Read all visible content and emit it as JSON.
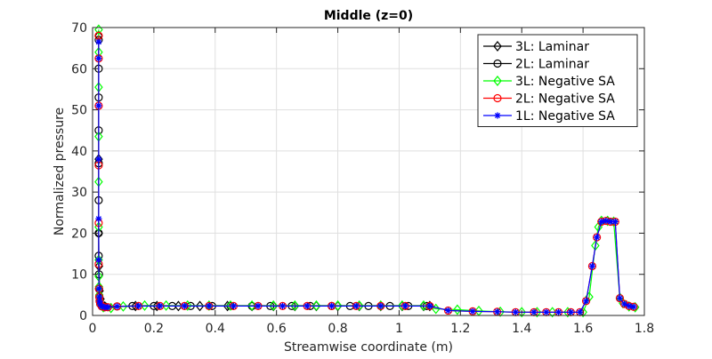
{
  "chart_data": {
    "type": "line",
    "title": "Middle (z=0)",
    "xlabel": "Streamwise coordinate (m)",
    "ylabel": "Normalized pressure",
    "xlim": [
      0,
      1.8
    ],
    "ylim": [
      0,
      70
    ],
    "xticks": [
      "0",
      "0.2",
      "0.4",
      "0.6",
      "0.8",
      "1",
      "1.2",
      "1.4",
      "1.6",
      "1.8"
    ],
    "yticks": [
      "0",
      "10",
      "20",
      "30",
      "40",
      "50",
      "60",
      "70"
    ],
    "grid": true,
    "legend_position": "top-right",
    "series": [
      {
        "name": "3L: Laminar",
        "color": "#000000",
        "marker": "diamond",
        "x": [
          0.02,
          0.02,
          0.02,
          0.021,
          0.023,
          0.026,
          0.03,
          0.04,
          0.14,
          0.21,
          0.28,
          0.35,
          0.44,
          0.52,
          0.59,
          0.66,
          0.73,
          0.8,
          0.87,
          0.94,
          1.01,
          1.08,
          1.1
        ],
        "y": [
          68,
          38,
          20,
          12,
          6,
          4,
          2.5,
          2.2,
          2.3,
          2.3,
          2.3,
          2.3,
          2.3,
          2.3,
          2.3,
          2.3,
          2.3,
          2.3,
          2.3,
          2.3,
          2.3,
          2.3,
          2.3
        ]
      },
      {
        "name": "2L: Laminar",
        "color": "#000000",
        "marker": "circle",
        "x": [
          0.02,
          0.02,
          0.02,
          0.02,
          0.02,
          0.02,
          0.02,
          0.02,
          0.021,
          0.021,
          0.022,
          0.023,
          0.025,
          0.03,
          0.04,
          0.08,
          0.13,
          0.2,
          0.26,
          0.32,
          0.39,
          0.45,
          0.52,
          0.58,
          0.65,
          0.71,
          0.78,
          0.84,
          0.9,
          0.97,
          1.03,
          1.09
        ],
        "y": [
          67,
          60,
          53,
          45,
          37,
          28,
          20,
          14.5,
          10,
          6.5,
          4.5,
          3.5,
          2.8,
          2.3,
          2.2,
          2.2,
          2.3,
          2.3,
          2.3,
          2.3,
          2.3,
          2.3,
          2.3,
          2.3,
          2.3,
          2.3,
          2.3,
          2.3,
          2.3,
          2.3,
          2.3,
          2.3
        ]
      },
      {
        "name": "3L: Negative SA",
        "color": "#00ff00",
        "marker": "diamond",
        "x": [
          0.02,
          0.02,
          0.02,
          0.02,
          0.02,
          0.02,
          0.02,
          0.02,
          0.021,
          0.022,
          0.024,
          0.028,
          0.035,
          0.06,
          0.1,
          0.17,
          0.24,
          0.31,
          0.38,
          0.45,
          0.52,
          0.59,
          0.66,
          0.73,
          0.8,
          0.87,
          0.94,
          1.01,
          1.08,
          1.12,
          1.19,
          1.26,
          1.33,
          1.4,
          1.45,
          1.5,
          1.55,
          1.6,
          1.62,
          1.64,
          1.65,
          1.66,
          1.68,
          1.7,
          1.72,
          1.73,
          1.75,
          1.77
        ],
        "y": [
          69.5,
          64,
          55.5,
          43.5,
          32.5,
          21.5,
          13.5,
          9.5,
          7,
          5,
          3.5,
          2.5,
          2.0,
          1.8,
          2.2,
          2.4,
          2.4,
          2.4,
          2.4,
          2.4,
          2.4,
          2.4,
          2.4,
          2.4,
          2.4,
          2.4,
          2.4,
          2.4,
          2.4,
          1.6,
          1.4,
          1.1,
          0.9,
          0.8,
          0.8,
          0.8,
          0.8,
          0.8,
          4.5,
          17,
          21.5,
          23,
          23,
          22.8,
          4.3,
          3,
          2.2,
          2.0
        ]
      },
      {
        "name": "2L: Negative SA",
        "color": "#ff0000",
        "marker": "circle",
        "x": [
          0.02,
          0.02,
          0.02,
          0.02,
          0.02,
          0.02,
          0.021,
          0.022,
          0.023,
          0.025,
          0.03,
          0.04,
          0.05,
          0.08,
          0.15,
          0.22,
          0.3,
          0.38,
          0.46,
          0.54,
          0.62,
          0.7,
          0.78,
          0.86,
          0.94,
          1.02,
          1.1,
          1.16,
          1.24,
          1.32,
          1.38,
          1.44,
          1.48,
          1.52,
          1.56,
          1.59,
          1.61,
          1.63,
          1.645,
          1.66,
          1.675,
          1.69,
          1.705,
          1.72,
          1.735,
          1.75,
          1.765
        ],
        "y": [
          68,
          62.5,
          51,
          36.5,
          22.5,
          12.5,
          6.5,
          4.5,
          3.5,
          2.8,
          2.2,
          2.0,
          2.0,
          2.2,
          2.3,
          2.3,
          2.3,
          2.3,
          2.3,
          2.3,
          2.3,
          2.3,
          2.3,
          2.3,
          2.3,
          2.3,
          2.3,
          1.2,
          1.0,
          0.9,
          0.8,
          0.8,
          0.8,
          0.8,
          0.8,
          0.8,
          3.5,
          12,
          19,
          22.8,
          23,
          22.8,
          22.8,
          4.2,
          2.8,
          2.3,
          2.1
        ]
      },
      {
        "name": "1L: Negative SA",
        "color": "#0000ff",
        "marker": "star",
        "x": [
          0.02,
          0.02,
          0.02,
          0.02,
          0.02,
          0.02,
          0.021,
          0.022,
          0.023,
          0.025,
          0.03,
          0.04,
          0.05,
          0.08,
          0.15,
          0.22,
          0.3,
          0.38,
          0.46,
          0.54,
          0.62,
          0.7,
          0.78,
          0.86,
          0.94,
          1.02,
          1.1,
          1.16,
          1.24,
          1.32,
          1.38,
          1.44,
          1.48,
          1.52,
          1.56,
          1.59,
          1.61,
          1.63,
          1.645,
          1.66,
          1.675,
          1.69,
          1.705,
          1.72,
          1.735,
          1.75,
          1.765
        ],
        "y": [
          66.5,
          62.5,
          51,
          38,
          23.5,
          13.5,
          6.5,
          4.5,
          3.5,
          2.8,
          2.2,
          2.0,
          2.0,
          2.2,
          2.3,
          2.3,
          2.3,
          2.3,
          2.3,
          2.3,
          2.3,
          2.3,
          2.3,
          2.3,
          2.3,
          2.3,
          2.3,
          1.2,
          1.0,
          0.9,
          0.8,
          0.8,
          0.8,
          0.8,
          0.8,
          0.8,
          3.5,
          12,
          19,
          22.8,
          23,
          22.8,
          22.8,
          4.2,
          2.8,
          2.3,
          2.1
        ]
      }
    ]
  }
}
